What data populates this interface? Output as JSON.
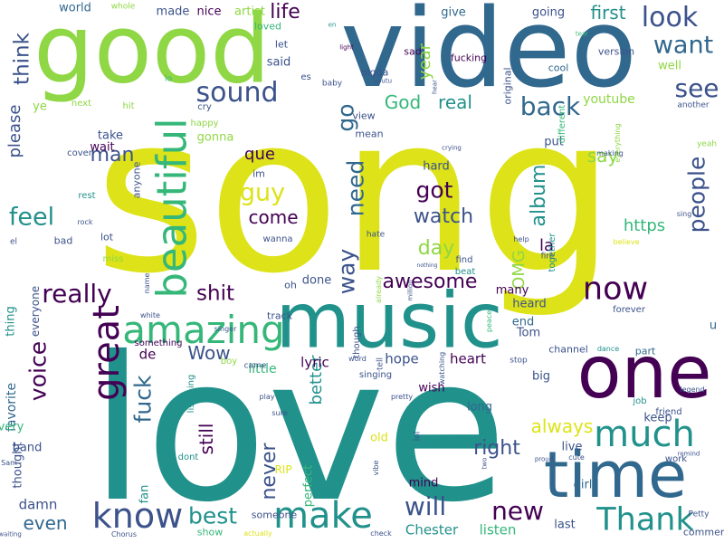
{
  "wordcloud": {
    "background": "#ffffff",
    "palette": {
      "purple": "#440154",
      "indigo": "#3b528b",
      "blue": "#31688e",
      "teal": "#21918c",
      "green": "#35b779",
      "lime": "#8fd744",
      "yellow": "#dde318"
    },
    "words": [
      {
        "t": "song",
        "c": "yellow"
      },
      {
        "t": "love",
        "c": "teal"
      },
      {
        "t": "video",
        "c": "blue"
      },
      {
        "t": "good",
        "c": "lime"
      },
      {
        "t": "music",
        "c": "teal"
      },
      {
        "t": "one",
        "c": "purple"
      },
      {
        "t": "time",
        "c": "blue"
      },
      {
        "t": "beautiful",
        "c": "green",
        "v": true
      },
      {
        "t": "amazing",
        "c": "green"
      },
      {
        "t": "great",
        "c": "purple",
        "v": true
      },
      {
        "t": "know",
        "c": "indigo"
      },
      {
        "t": "make",
        "c": "teal"
      },
      {
        "t": "much",
        "c": "teal"
      },
      {
        "t": "Thank",
        "c": "teal"
      },
      {
        "t": "now",
        "c": "purple"
      },
      {
        "t": "sound",
        "c": "indigo"
      },
      {
        "t": "look",
        "c": "indigo"
      },
      {
        "t": "want",
        "c": "blue"
      },
      {
        "t": "see",
        "c": "indigo"
      },
      {
        "t": "back",
        "c": "blue"
      },
      {
        "t": "people",
        "c": "indigo",
        "v": true
      },
      {
        "t": "really",
        "c": "purple"
      },
      {
        "t": "feel",
        "c": "teal"
      },
      {
        "t": "voice",
        "c": "purple",
        "v": true
      },
      {
        "t": "guy",
        "c": "yellow"
      },
      {
        "t": "got",
        "c": "purple"
      },
      {
        "t": "need",
        "c": "blue",
        "v": true
      },
      {
        "t": "go",
        "c": "blue",
        "v": true
      },
      {
        "t": "fuck",
        "c": "blue",
        "v": true
      },
      {
        "t": "shit",
        "c": "purple"
      },
      {
        "t": "best",
        "c": "teal"
      },
      {
        "t": "new",
        "c": "purple"
      },
      {
        "t": "will",
        "c": "indigo"
      },
      {
        "t": "way",
        "c": "indigo",
        "v": true
      },
      {
        "t": "life",
        "c": "purple"
      },
      {
        "t": "think",
        "c": "indigo",
        "v": true
      },
      {
        "t": "album",
        "c": "teal",
        "v": true
      },
      {
        "t": "watch",
        "c": "indigo"
      },
      {
        "t": "day",
        "c": "lime"
      },
      {
        "t": "come",
        "c": "purple"
      },
      {
        "t": "awesome",
        "c": "purple"
      },
      {
        "t": "right",
        "c": "indigo"
      },
      {
        "t": "never",
        "c": "indigo",
        "v": true
      },
      {
        "t": "even",
        "c": "blue"
      },
      {
        "t": "still",
        "c": "purple",
        "v": true
      },
      {
        "t": "man",
        "c": "indigo"
      },
      {
        "t": "Wow",
        "c": "indigo"
      },
      {
        "t": "first",
        "c": "teal"
      },
      {
        "t": "say",
        "c": "lime"
      },
      {
        "t": "God",
        "c": "green"
      },
      {
        "t": "real",
        "c": "teal"
      },
      {
        "t": "que",
        "c": "purple"
      },
      {
        "t": "https",
        "c": "green"
      },
      {
        "t": "please",
        "c": "indigo",
        "v": true
      },
      {
        "t": "year",
        "c": "lime",
        "v": true
      },
      {
        "t": "always",
        "c": "yellow"
      },
      {
        "t": "better",
        "c": "teal",
        "v": true
      },
      {
        "t": "OMG",
        "c": "lime",
        "v": true
      },
      {
        "t": "la",
        "c": "purple"
      },
      {
        "t": "de",
        "c": "purple"
      },
      {
        "t": "lyric",
        "c": "purple"
      },
      {
        "t": "little",
        "c": "green"
      },
      {
        "t": "hope",
        "c": "indigo"
      },
      {
        "t": "heart",
        "c": "purple"
      },
      {
        "t": "listen",
        "c": "green"
      },
      {
        "t": "Chester",
        "c": "teal"
      },
      {
        "t": "damn",
        "c": "indigo"
      },
      {
        "t": "world",
        "c": "blue"
      },
      {
        "t": "made",
        "c": "indigo"
      },
      {
        "t": "nice",
        "c": "purple"
      },
      {
        "t": "artist",
        "c": "lime"
      },
      {
        "t": "give",
        "c": "blue"
      },
      {
        "t": "going",
        "c": "indigo"
      },
      {
        "t": "well",
        "c": "lime"
      },
      {
        "t": "youtube",
        "c": "lime"
      },
      {
        "t": "fucking",
        "c": "purple"
      },
      {
        "t": "sad",
        "c": "purple"
      },
      {
        "t": "cool",
        "c": "blue"
      },
      {
        "t": "version",
        "c": "indigo"
      },
      {
        "t": "said",
        "c": "indigo"
      },
      {
        "t": "let",
        "c": "indigo"
      },
      {
        "t": "loved",
        "c": "green"
      },
      {
        "t": "ye",
        "c": "lime"
      },
      {
        "t": "take",
        "c": "indigo"
      },
      {
        "t": "wait",
        "c": "purple"
      },
      {
        "t": "gonna",
        "c": "lime"
      },
      {
        "t": "im",
        "c": "indigo"
      },
      {
        "t": "hard",
        "c": "indigo"
      },
      {
        "t": "view",
        "c": "indigo"
      },
      {
        "t": "mean",
        "c": "indigo"
      },
      {
        "t": "put",
        "c": "indigo"
      },
      {
        "t": "u",
        "c": "blue"
      },
      {
        "t": "thing",
        "c": "teal",
        "v": true
      },
      {
        "t": "favorite",
        "c": "blue",
        "v": true
      },
      {
        "t": "thought",
        "c": "indigo",
        "v": true
      },
      {
        "t": "band",
        "c": "indigo"
      },
      {
        "t": "every",
        "c": "green"
      },
      {
        "t": "fan",
        "c": "teal",
        "v": true
      },
      {
        "t": "RIP",
        "c": "yellow"
      },
      {
        "t": "perfect",
        "c": "green",
        "v": true
      },
      {
        "t": "mind",
        "c": "purple"
      },
      {
        "t": "wish",
        "c": "purple"
      },
      {
        "t": "old",
        "c": "yellow"
      },
      {
        "t": "live",
        "c": "indigo"
      },
      {
        "t": "keep",
        "c": "indigo"
      },
      {
        "t": "last",
        "c": "indigo"
      },
      {
        "t": "girl",
        "c": "blue"
      },
      {
        "t": "long",
        "c": "blue"
      },
      {
        "t": "many",
        "c": "purple"
      },
      {
        "t": "heard",
        "c": "indigo"
      },
      {
        "t": "Tom",
        "c": "indigo"
      },
      {
        "t": "end",
        "c": "blue"
      },
      {
        "t": "part",
        "c": "blue"
      },
      {
        "t": "channel",
        "c": "indigo"
      },
      {
        "t": "comment",
        "c": "indigo"
      },
      {
        "t": "done",
        "c": "indigo"
      },
      {
        "t": "oh",
        "c": "indigo"
      },
      {
        "t": "track",
        "c": "indigo"
      },
      {
        "t": "show",
        "c": "green"
      },
      {
        "t": "someone",
        "c": "indigo"
      },
      {
        "t": "big",
        "c": "indigo"
      },
      {
        "t": "anyone",
        "c": "indigo",
        "v": true
      },
      {
        "t": "lot",
        "c": "indigo"
      },
      {
        "t": "bad",
        "c": "indigo"
      },
      {
        "t": "wanna",
        "c": "indigo"
      },
      {
        "t": "miss",
        "c": "lime"
      },
      {
        "t": "cover",
        "c": "indigo"
      },
      {
        "t": "rest",
        "c": "teal"
      },
      {
        "t": "job",
        "c": "teal"
      },
      {
        "t": "friend",
        "c": "indigo"
      },
      {
        "t": "work",
        "c": "indigo"
      },
      {
        "t": "forever",
        "c": "indigo"
      },
      {
        "t": "dont",
        "c": "teal"
      },
      {
        "t": "listening",
        "c": "teal",
        "v": true
      },
      {
        "t": "everyone",
        "c": "indigo",
        "v": true
      },
      {
        "t": "something",
        "c": "purple"
      },
      {
        "t": "boy",
        "c": "lime"
      },
      {
        "t": "cry",
        "c": "indigo"
      },
      {
        "t": "happy",
        "c": "lime"
      },
      {
        "t": "hit",
        "c": "lime"
      },
      {
        "t": "next",
        "c": "lime"
      },
      {
        "t": "lo",
        "c": "green"
      },
      {
        "t": "whole",
        "c": "lime"
      },
      {
        "t": "en",
        "c": "teal"
      },
      {
        "t": "light",
        "c": "purple"
      },
      {
        "t": "tear",
        "c": "green"
      },
      {
        "t": "es",
        "c": "indigo"
      },
      {
        "t": "baby",
        "c": "indigo"
      },
      {
        "t": "youtu",
        "c": "indigo"
      },
      {
        "t": "nigga",
        "c": "indigo"
      },
      {
        "t": "hear",
        "c": "indigo",
        "v": true
      },
      {
        "t": "original",
        "c": "indigo",
        "v": true
      },
      {
        "t": "different",
        "c": "green",
        "v": true
      },
      {
        "t": "another",
        "c": "indigo"
      },
      {
        "t": "yeah",
        "c": "lime"
      },
      {
        "t": "everything",
        "c": "lime",
        "v": true
      },
      {
        "t": "making",
        "c": "indigo"
      },
      {
        "t": "sing",
        "c": "indigo"
      },
      {
        "t": "crying",
        "c": "indigo"
      },
      {
        "t": "find",
        "c": "indigo"
      },
      {
        "t": "beat",
        "c": "teal"
      },
      {
        "t": "together",
        "c": "teal",
        "v": true
      },
      {
        "t": "believe",
        "c": "yellow"
      },
      {
        "t": "help",
        "c": "indigo"
      },
      {
        "t": "fire",
        "c": "indigo"
      },
      {
        "t": "nothing",
        "c": "indigo"
      },
      {
        "t": "already",
        "c": "lime",
        "v": true
      },
      {
        "t": "hate",
        "c": "indigo"
      },
      {
        "t": "million",
        "c": "indigo",
        "v": true
      },
      {
        "t": "singer",
        "c": "indigo"
      },
      {
        "t": "white",
        "c": "indigo"
      },
      {
        "t": "came",
        "c": "indigo"
      },
      {
        "t": "name",
        "c": "indigo",
        "v": true
      },
      {
        "t": "peace",
        "c": "green",
        "v": true
      },
      {
        "t": "though",
        "c": "indigo",
        "v": true
      },
      {
        "t": "tell",
        "c": "indigo",
        "v": true
      },
      {
        "t": "word",
        "c": "indigo"
      },
      {
        "t": "stop",
        "c": "indigo"
      },
      {
        "t": "dance",
        "c": "teal"
      },
      {
        "t": "watching",
        "c": "indigo",
        "v": true
      },
      {
        "t": "singing",
        "c": "indigo"
      },
      {
        "t": "pretty",
        "c": "indigo"
      },
      {
        "t": "legend",
        "c": "indigo"
      },
      {
        "t": "play",
        "c": "indigo"
      },
      {
        "t": "sure",
        "c": "indigo"
      },
      {
        "t": "vibe",
        "c": "indigo",
        "v": true
      },
      {
        "t": "two",
        "c": "indigo",
        "v": true
      },
      {
        "t": "proud",
        "c": "indigo"
      },
      {
        "t": "cute",
        "c": "indigo"
      },
      {
        "t": "remind",
        "c": "indigo"
      },
      {
        "t": "Sam",
        "c": "indigo"
      },
      {
        "t": "waiting",
        "c": "indigo"
      },
      {
        "t": "Chorus",
        "c": "indigo"
      },
      {
        "t": "actually",
        "c": "yellow"
      },
      {
        "t": "check",
        "c": "indigo"
      },
      {
        "t": "Petty",
        "c": "indigo"
      },
      {
        "t": "rock",
        "c": "indigo"
      },
      {
        "t": "el",
        "c": "indigo"
      },
      {
        "t": "lol",
        "c": "indigo",
        "v": true
      }
    ]
  }
}
